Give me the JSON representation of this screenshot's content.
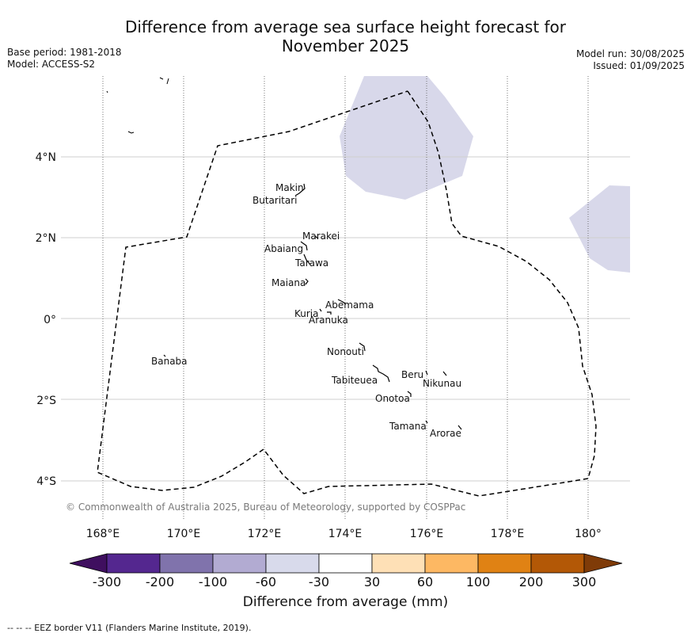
{
  "header": {
    "title_line1": "Difference from average sea surface height forecast for",
    "title_line2": "November 2025",
    "base_period": "Base period: 1981-2018",
    "model": "Model: ACCESS-S2",
    "model_run": "Model run: 30/08/2025",
    "issued": "Issued: 01/09/2025"
  },
  "map": {
    "lon_ticks": [
      "168°E",
      "170°E",
      "172°E",
      "174°E",
      "176°E",
      "178°E",
      "180°"
    ],
    "lat_ticks": [
      "4°N",
      "2°N",
      "0°",
      "2°S",
      "4°S"
    ],
    "copyright": "© Commonwealth of Australia 2025, Bureau of Meteorology, supported by COSPPac",
    "islands": [
      {
        "name": "Makin"
      },
      {
        "name": "Butaritari"
      },
      {
        "name": "Marakei"
      },
      {
        "name": "Abaiang"
      },
      {
        "name": "Tarawa"
      },
      {
        "name": "Maiana"
      },
      {
        "name": "Abemama"
      },
      {
        "name": "Kuria"
      },
      {
        "name": "Aranuka"
      },
      {
        "name": "Banaba"
      },
      {
        "name": "Nonouti"
      },
      {
        "name": "Beru"
      },
      {
        "name": "Nikunau"
      },
      {
        "name": "Tabiteuea"
      },
      {
        "name": "Onotoa"
      },
      {
        "name": "Tamana"
      },
      {
        "name": "Arorae"
      }
    ],
    "anomaly_shading": "-60 to -30 mm",
    "anomaly_color": "#d8d8ea"
  },
  "colorbar": {
    "title": "Difference from average (mm)",
    "tick_labels": [
      "-300",
      "-200",
      "-100",
      "-60",
      "-30",
      "30",
      "60",
      "100",
      "200",
      "300"
    ],
    "colors": [
      "#3f0f5f",
      "#54278f",
      "#8073ac",
      "#b2abd2",
      "#d8daeb",
      "#ffffff",
      "#fee0b6",
      "#fdb863",
      "#e08214",
      "#b35806",
      "#7f3b08"
    ]
  },
  "footnote": "--  --  -- EEZ border V11 (Flanders Marine Institute, 2019)."
}
